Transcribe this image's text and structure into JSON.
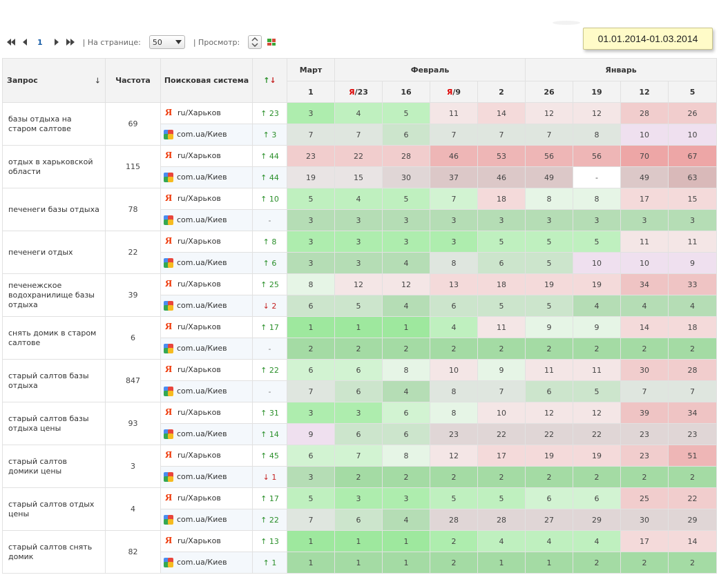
{
  "date_range": "01.01.2014-01.03.2014",
  "toolbar": {
    "page": "1",
    "per_page_label": "| На странице:",
    "per_page_value": "50",
    "view_label": "| Просмотр:"
  },
  "header": {
    "query": "Запрос",
    "query_sort_arrow": "↓",
    "frequency": "Частота",
    "engine": "Поисковая система",
    "change_up": "↑",
    "change_down": "↓",
    "months": [
      {
        "name": "Март",
        "span": 1
      },
      {
        "name": "Февраль",
        "span": 4
      },
      {
        "name": "Январь",
        "span": 4
      }
    ],
    "dates": [
      {
        "ya": "",
        "day": "1"
      },
      {
        "ya": "Я",
        "day": "/23"
      },
      {
        "ya": "",
        "day": "16"
      },
      {
        "ya": "Я",
        "day": "/9"
      },
      {
        "ya": "",
        "day": "2"
      },
      {
        "ya": "",
        "day": "26"
      },
      {
        "ya": "",
        "day": "19"
      },
      {
        "ya": "",
        "day": "12"
      },
      {
        "ya": "",
        "day": "5"
      }
    ]
  },
  "engines": {
    "yandex": {
      "icon": "yandex-icon",
      "label": "ru/Харьков"
    },
    "google": {
      "icon": "google-icon",
      "label": "com.ua/Киев"
    }
  },
  "colors": {
    "green_strong": "#9ad89a",
    "green_light": "#d7f2d7",
    "red_strong": "#eeb0b0",
    "red_light": "#f5dede",
    "row_alt": "#f4f8fc"
  },
  "rows": [
    {
      "query": "базы отдыха на старом салтове",
      "freq": "69",
      "ya": {
        "dir": "up",
        "chg": "23",
        "vals": [
          "3",
          "4",
          "5",
          "11",
          "14",
          "12",
          "12",
          "28",
          "26"
        ]
      },
      "go": {
        "dir": "up",
        "chg": "3",
        "vals": [
          "7",
          "7",
          "6",
          "7",
          "7",
          "7",
          "8",
          "10",
          "10"
        ]
      }
    },
    {
      "query": "отдых в харьковской области",
      "freq": "115",
      "ya": {
        "dir": "up",
        "chg": "44",
        "vals": [
          "23",
          "22",
          "28",
          "46",
          "53",
          "56",
          "56",
          "70",
          "67"
        ]
      },
      "go": {
        "dir": "up",
        "chg": "44",
        "vals": [
          "19",
          "15",
          "30",
          "37",
          "46",
          "49",
          "-",
          "49",
          "63"
        ]
      }
    },
    {
      "query": "печенеги базы отдыха",
      "freq": "78",
      "ya": {
        "dir": "up",
        "chg": "10",
        "vals": [
          "5",
          "4",
          "5",
          "7",
          "18",
          "8",
          "8",
          "17",
          "15"
        ]
      },
      "go": {
        "dir": "none",
        "chg": "-",
        "vals": [
          "3",
          "3",
          "3",
          "3",
          "3",
          "3",
          "3",
          "3",
          "3"
        ]
      }
    },
    {
      "query": "печенеги отдых",
      "freq": "22",
      "ya": {
        "dir": "up",
        "chg": "8",
        "vals": [
          "3",
          "3",
          "3",
          "3",
          "5",
          "5",
          "5",
          "11",
          "11"
        ]
      },
      "go": {
        "dir": "up",
        "chg": "6",
        "vals": [
          "3",
          "3",
          "4",
          "8",
          "6",
          "5",
          "10",
          "10",
          "9"
        ]
      }
    },
    {
      "query": "печенежское водохранилище базы отдыха",
      "freq": "39",
      "ya": {
        "dir": "up",
        "chg": "25",
        "vals": [
          "8",
          "12",
          "12",
          "13",
          "18",
          "19",
          "19",
          "34",
          "33"
        ]
      },
      "go": {
        "dir": "down",
        "chg": "2",
        "vals": [
          "6",
          "5",
          "4",
          "6",
          "5",
          "5",
          "4",
          "4",
          "4"
        ]
      }
    },
    {
      "query": "снять домик в старом салтове",
      "freq": "6",
      "ya": {
        "dir": "up",
        "chg": "17",
        "vals": [
          "1",
          "1",
          "1",
          "4",
          "11",
          "9",
          "9",
          "14",
          "18"
        ]
      },
      "go": {
        "dir": "none",
        "chg": "-",
        "vals": [
          "2",
          "2",
          "2",
          "2",
          "2",
          "2",
          "2",
          "2",
          "2"
        ]
      }
    },
    {
      "query": "старый салтов базы отдыха",
      "freq": "847",
      "ya": {
        "dir": "up",
        "chg": "22",
        "vals": [
          "6",
          "6",
          "8",
          "10",
          "9",
          "11",
          "11",
          "30",
          "28"
        ]
      },
      "go": {
        "dir": "none",
        "chg": "-",
        "vals": [
          "7",
          "6",
          "4",
          "8",
          "7",
          "6",
          "5",
          "7",
          "7"
        ]
      }
    },
    {
      "query": "старый салтов базы отдыха цены",
      "freq": "93",
      "ya": {
        "dir": "up",
        "chg": "31",
        "vals": [
          "3",
          "3",
          "6",
          "8",
          "10",
          "12",
          "12",
          "39",
          "34"
        ]
      },
      "go": {
        "dir": "up",
        "chg": "14",
        "vals": [
          "9",
          "6",
          "6",
          "23",
          "22",
          "22",
          "22",
          "23",
          "23"
        ]
      }
    },
    {
      "query": "старый салтов домики цены",
      "freq": "3",
      "ya": {
        "dir": "up",
        "chg": "45",
        "vals": [
          "6",
          "7",
          "8",
          "12",
          "17",
          "19",
          "19",
          "23",
          "51"
        ]
      },
      "go": {
        "dir": "down",
        "chg": "1",
        "vals": [
          "3",
          "2",
          "2",
          "2",
          "2",
          "2",
          "2",
          "2",
          "2"
        ]
      }
    },
    {
      "query": "старый салтов отдых цены",
      "freq": "4",
      "ya": {
        "dir": "up",
        "chg": "17",
        "vals": [
          "5",
          "3",
          "3",
          "5",
          "5",
          "6",
          "6",
          "25",
          "22"
        ]
      },
      "go": {
        "dir": "up",
        "chg": "22",
        "vals": [
          "7",
          "6",
          "4",
          "28",
          "28",
          "27",
          "29",
          "30",
          "29"
        ]
      }
    },
    {
      "query": "старый салтов снять домик",
      "freq": "82",
      "ya": {
        "dir": "up",
        "chg": "13",
        "vals": [
          "1",
          "1",
          "1",
          "2",
          "4",
          "4",
          "4",
          "17",
          "14"
        ]
      },
      "go": {
        "dir": "up",
        "chg": "1",
        "vals": [
          "1",
          "1",
          "1",
          "2",
          "1",
          "1",
          "2",
          "2",
          "2"
        ]
      }
    }
  ]
}
